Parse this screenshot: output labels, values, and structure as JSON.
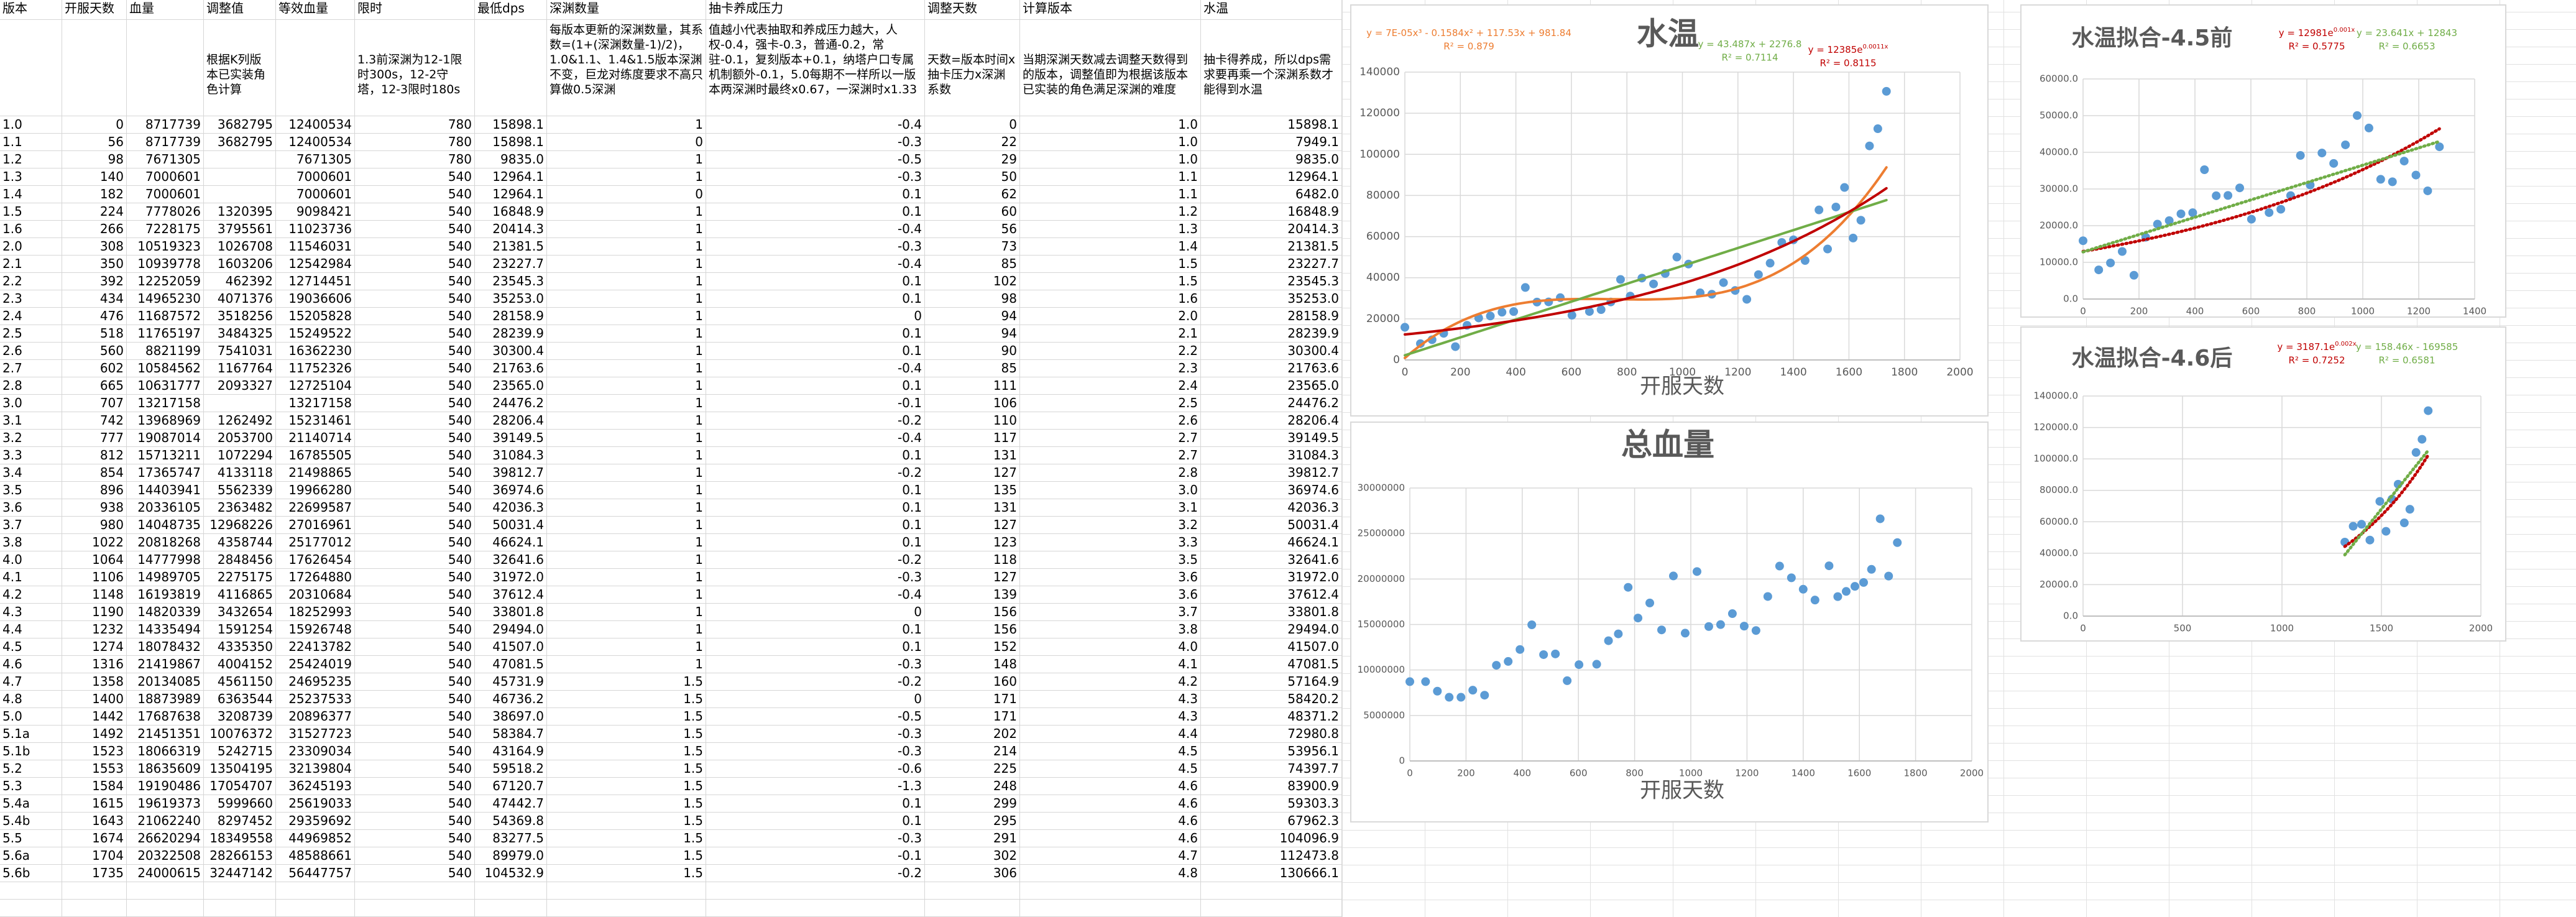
{
  "table": {
    "columns": [
      "版本",
      "开服天数",
      "血量",
      "调整值",
      "等效血量",
      "限时",
      "最低dps",
      "深渊数量",
      "抽卡养成压力",
      "调整天数",
      "计算版本",
      "水温"
    ],
    "notes": [
      null,
      null,
      null,
      "根据K列版本已实装角色计算",
      null,
      "1.3前深渊为12-1限时300s，12-2守塔，12-3限时180s",
      null,
      "每版本更新的深渊数量，其系数=(1+(深渊数量-1)/2)，1.0&1.1、1.4&1.5版本深渊不变，巨龙对练度要求不高只算做0.5深渊",
      "值越小代表抽取和养成压力越大，人权-0.4，强卡-0.3，普通-0.2，常驻-0.1，复刻版本+0.1，纳塔户口专属机制额外-0.1，5.0每期不一样所以一版本两深渊时最终x0.67，一深渊时x1.33",
      "天数=版本时间x抽卡压力x深渊系数",
      "当期深渊天数减去调整天数得到的版本，调整值即为根据该版本已实装的角色满足深渊的难度",
      "抽卡得养成，所以dps需求要再乘一个深渊系数才能得到水温"
    ],
    "rows": [
      [
        "1.0",
        "0",
        "8717739",
        "3682795",
        "12400534",
        "780",
        "15898.1",
        "1",
        "-0.4",
        "0",
        "1.0",
        "15898.1"
      ],
      [
        "1.1",
        "56",
        "8717739",
        "3682795",
        "12400534",
        "780",
        "15898.1",
        "0",
        "-0.3",
        "22",
        "1.0",
        "7949.1"
      ],
      [
        "1.2",
        "98",
        "7671305",
        null,
        "7671305",
        "780",
        "9835.0",
        "1",
        "-0.5",
        "29",
        "1.0",
        "9835.0"
      ],
      [
        "1.3",
        "140",
        "7000601",
        null,
        "7000601",
        "540",
        "12964.1",
        "1",
        "-0.3",
        "50",
        "1.1",
        "12964.1"
      ],
      [
        "1.4",
        "182",
        "7000601",
        null,
        "7000601",
        "540",
        "12964.1",
        "0",
        "0.1",
        "62",
        "1.1",
        "6482.0"
      ],
      [
        "1.5",
        "224",
        "7778026",
        "1320395",
        "9098421",
        "540",
        "16848.9",
        "1",
        "0.1",
        "60",
        "1.2",
        "16848.9"
      ],
      [
        "1.6",
        "266",
        "7228175",
        "3795561",
        "11023736",
        "540",
        "20414.3",
        "1",
        "-0.4",
        "56",
        "1.3",
        "20414.3"
      ],
      [
        "2.0",
        "308",
        "10519323",
        "1026708",
        "11546031",
        "540",
        "21381.5",
        "1",
        "-0.3",
        "73",
        "1.4",
        "21381.5"
      ],
      [
        "2.1",
        "350",
        "10939778",
        "1603206",
        "12542984",
        "540",
        "23227.7",
        "1",
        "-0.4",
        "85",
        "1.5",
        "23227.7"
      ],
      [
        "2.2",
        "392",
        "12252059",
        "462392",
        "12714451",
        "540",
        "23545.3",
        "1",
        "0.1",
        "102",
        "1.5",
        "23545.3"
      ],
      [
        "2.3",
        "434",
        "14965230",
        "4071376",
        "19036606",
        "540",
        "35253.0",
        "1",
        "0.1",
        "98",
        "1.6",
        "35253.0"
      ],
      [
        "2.4",
        "476",
        "11687572",
        "3518256",
        "15205828",
        "540",
        "28158.9",
        "1",
        "0",
        "94",
        "2.0",
        "28158.9"
      ],
      [
        "2.5",
        "518",
        "11765197",
        "3484325",
        "15249522",
        "540",
        "28239.9",
        "1",
        "0.1",
        "94",
        "2.1",
        "28239.9"
      ],
      [
        "2.6",
        "560",
        "8821199",
        "7541031",
        "16362230",
        "540",
        "30300.4",
        "1",
        "0.1",
        "90",
        "2.2",
        "30300.4"
      ],
      [
        "2.7",
        "602",
        "10584562",
        "1167764",
        "11752326",
        "540",
        "21763.6",
        "1",
        "-0.4",
        "85",
        "2.3",
        "21763.6"
      ],
      [
        "2.8",
        "665",
        "10631777",
        "2093327",
        "12725104",
        "540",
        "23565.0",
        "1",
        "0.1",
        "111",
        "2.4",
        "23565.0"
      ],
      [
        "3.0",
        "707",
        "13217158",
        null,
        "13217158",
        "540",
        "24476.2",
        "1",
        "-0.1",
        "106",
        "2.5",
        "24476.2"
      ],
      [
        "3.1",
        "742",
        "13968969",
        "1262492",
        "15231461",
        "540",
        "28206.4",
        "1",
        "-0.2",
        "110",
        "2.6",
        "28206.4"
      ],
      [
        "3.2",
        "777",
        "19087014",
        "2053700",
        "21140714",
        "540",
        "39149.5",
        "1",
        "-0.4",
        "117",
        "2.7",
        "39149.5"
      ],
      [
        "3.3",
        "812",
        "15713211",
        "1072294",
        "16785505",
        "540",
        "31084.3",
        "1",
        "0.1",
        "131",
        "2.7",
        "31084.3"
      ],
      [
        "3.4",
        "854",
        "17365747",
        "4133118",
        "21498865",
        "540",
        "39812.7",
        "1",
        "-0.2",
        "127",
        "2.8",
        "39812.7"
      ],
      [
        "3.5",
        "896",
        "14403941",
        "5562339",
        "19966280",
        "540",
        "36974.6",
        "1",
        "0.1",
        "135",
        "3.0",
        "36974.6"
      ],
      [
        "3.6",
        "938",
        "20336105",
        "2363482",
        "22699587",
        "540",
        "42036.3",
        "1",
        "0.1",
        "131",
        "3.1",
        "42036.3"
      ],
      [
        "3.7",
        "980",
        "14048735",
        "12968226",
        "27016961",
        "540",
        "50031.4",
        "1",
        "0.1",
        "127",
        "3.2",
        "50031.4"
      ],
      [
        "3.8",
        "1022",
        "20818268",
        "4358744",
        "25177012",
        "540",
        "46624.1",
        "1",
        "0.1",
        "123",
        "3.3",
        "46624.1"
      ],
      [
        "4.0",
        "1064",
        "14777998",
        "2848456",
        "17626454",
        "540",
        "32641.6",
        "1",
        "-0.2",
        "118",
        "3.5",
        "32641.6"
      ],
      [
        "4.1",
        "1106",
        "14989705",
        "2275175",
        "17264880",
        "540",
        "31972.0",
        "1",
        "-0.3",
        "127",
        "3.6",
        "31972.0"
      ],
      [
        "4.2",
        "1148",
        "16193819",
        "4116865",
        "20310684",
        "540",
        "37612.4",
        "1",
        "-0.4",
        "139",
        "3.6",
        "37612.4"
      ],
      [
        "4.3",
        "1190",
        "14820339",
        "3432654",
        "18252993",
        "540",
        "33801.8",
        "1",
        "0",
        "156",
        "3.7",
        "33801.8"
      ],
      [
        "4.4",
        "1232",
        "14335494",
        "1591254",
        "15926748",
        "540",
        "29494.0",
        "1",
        "0.1",
        "156",
        "3.8",
        "29494.0"
      ],
      [
        "4.5",
        "1274",
        "18078432",
        "4335350",
        "22413782",
        "540",
        "41507.0",
        "1",
        "0.1",
        "152",
        "4.0",
        "41507.0"
      ],
      [
        "4.6",
        "1316",
        "21419867",
        "4004152",
        "25424019",
        "540",
        "47081.5",
        "1",
        "-0.3",
        "148",
        "4.1",
        "47081.5"
      ],
      [
        "4.7",
        "1358",
        "20134085",
        "4561150",
        "24695235",
        "540",
        "45731.9",
        "1.5",
        "-0.2",
        "160",
        "4.2",
        "57164.9"
      ],
      [
        "4.8",
        "1400",
        "18873989",
        "6363544",
        "25237533",
        "540",
        "46736.2",
        "1.5",
        "0",
        "171",
        "4.3",
        "58420.2"
      ],
      [
        "5.0",
        "1442",
        "17687638",
        "3208739",
        "20896377",
        "540",
        "38697.0",
        "1.5",
        "-0.5",
        "171",
        "4.3",
        "48371.2"
      ],
      [
        "5.1a",
        "1492",
        "21451351",
        "10076372",
        "31527723",
        "540",
        "58384.7",
        "1.5",
        "-0.3",
        "202",
        "4.4",
        "72980.8"
      ],
      [
        "5.1b",
        "1523",
        "18066319",
        "5242715",
        "23309034",
        "540",
        "43164.9",
        "1.5",
        "-0.3",
        "214",
        "4.5",
        "53956.1"
      ],
      [
        "5.2",
        "1553",
        "18635609",
        "13504195",
        "32139804",
        "540",
        "59518.2",
        "1.5",
        "-0.6",
        "225",
        "4.5",
        "74397.7"
      ],
      [
        "5.3",
        "1584",
        "19190486",
        "17054707",
        "36245193",
        "540",
        "67120.7",
        "1.5",
        "-1.3",
        "248",
        "4.6",
        "83900.9"
      ],
      [
        "5.4a",
        "1615",
        "19619373",
        "5999660",
        "25619033",
        "540",
        "47442.7",
        "1.5",
        "0.1",
        "299",
        "4.6",
        "59303.3"
      ],
      [
        "5.4b",
        "1643",
        "21062240",
        "8297452",
        "29359692",
        "540",
        "54369.8",
        "1.5",
        "0.1",
        "295",
        "4.6",
        "67962.3"
      ],
      [
        "5.5",
        "1674",
        "26620294",
        "18349558",
        "44969852",
        "540",
        "83277.5",
        "1.5",
        "-0.3",
        "291",
        "4.6",
        "104096.9"
      ],
      [
        "5.6a",
        "1704",
        "20322508",
        "28266153",
        "48588661",
        "540",
        "89979.0",
        "1.5",
        "-0.1",
        "302",
        "4.7",
        "112473.8"
      ],
      [
        "5.6b",
        "1735",
        "24000615",
        "32447142",
        "56447757",
        "540",
        "104532.9",
        "1.5",
        "-0.2",
        "306",
        "4.8",
        "130666.1"
      ]
    ]
  },
  "chart_data": [
    {
      "type": "scatter",
      "title": "水温",
      "x_label": "开服天数",
      "color": "#5b9bd5",
      "grid": true,
      "x": [
        0,
        56,
        98,
        140,
        182,
        224,
        266,
        308,
        350,
        392,
        434,
        476,
        518,
        560,
        602,
        665,
        707,
        742,
        777,
        812,
        854,
        896,
        938,
        980,
        1022,
        1064,
        1106,
        1148,
        1190,
        1232,
        1274,
        1316,
        1358,
        1400,
        1442,
        1492,
        1523,
        1553,
        1584,
        1615,
        1643,
        1674,
        1704,
        1735
      ],
      "values": [
        15898.1,
        7949.1,
        9835.0,
        12964.1,
        6482.0,
        16848.9,
        20414.3,
        21381.5,
        23227.7,
        23545.3,
        35253.0,
        28158.9,
        28239.9,
        30300.4,
        21763.6,
        23565.0,
        24476.2,
        28206.4,
        39149.5,
        31084.3,
        39812.7,
        36974.6,
        42036.3,
        50031.4,
        46624.1,
        32641.6,
        31972.0,
        37612.4,
        33801.8,
        29494.0,
        41507.0,
        47081.5,
        57164.9,
        58420.2,
        48371.2,
        72980.8,
        53956.1,
        74397.7,
        83900.9,
        59303.3,
        67962.3,
        104096.9,
        112473.8,
        130666.1
      ],
      "xlim": [
        0,
        2000
      ],
      "xticks": [
        0,
        200,
        400,
        600,
        800,
        1000,
        1200,
        1400,
        1600,
        1800,
        2000
      ],
      "ylim": [
        0,
        140000
      ],
      "yticks": [
        0,
        20000,
        40000,
        60000,
        80000,
        100000,
        120000,
        140000
      ],
      "trendlines": [
        {
          "equation": "y = 7E-05x³ - 0.1584x² + 117.53x + 981.84",
          "r2": "R² = 0.879",
          "color": "#ed7d31",
          "style": "solid"
        },
        {
          "equation": "y = 43.487x + 2276.8",
          "r2": "R² = 0.7114",
          "color": "#70ad47",
          "style": "solid"
        },
        {
          "equation": "y = 12385e",
          "exponent": "0.0011x",
          "r2": "R² = 0.8115",
          "color": "#c00000",
          "style": "solid"
        }
      ]
    },
    {
      "type": "scatter",
      "title": "总血量",
      "x_label": "开服天数",
      "color": "#5b9bd5",
      "grid": true,
      "x": [
        0,
        56,
        98,
        140,
        182,
        224,
        266,
        308,
        350,
        392,
        434,
        476,
        518,
        560,
        602,
        665,
        707,
        742,
        777,
        812,
        854,
        896,
        938,
        980,
        1022,
        1064,
        1106,
        1148,
        1190,
        1232,
        1274,
        1316,
        1358,
        1400,
        1442,
        1492,
        1523,
        1553,
        1584,
        1615,
        1643,
        1674,
        1704,
        1735
      ],
      "values": [
        8717739,
        8717739,
        7671305,
        7000601,
        7000601,
        7778026,
        7228175,
        10519323,
        10939778,
        12252059,
        14965230,
        11687572,
        11765197,
        8821199,
        10584562,
        10631777,
        13217158,
        13968969,
        19087014,
        15713211,
        17365747,
        14403941,
        20336105,
        14048735,
        20818268,
        14777998,
        14989705,
        16193819,
        14820339,
        14335494,
        18078432,
        21419867,
        20134085,
        18873989,
        17687638,
        21451351,
        18066319,
        18635609,
        19190486,
        19619373,
        21062240,
        26620294,
        20322508,
        24000615
      ],
      "xlim": [
        0,
        2000
      ],
      "xticks": [
        0,
        200,
        400,
        600,
        800,
        1000,
        1200,
        1400,
        1600,
        1800,
        2000
      ],
      "ylim": [
        0,
        30000000
      ],
      "yticks": [
        0,
        5000000,
        10000000,
        15000000,
        20000000,
        25000000,
        30000000
      ]
    },
    {
      "type": "scatter",
      "title": "水温拟合-4.5前",
      "color": "#5b9bd5",
      "grid": true,
      "x": [
        0,
        56,
        98,
        140,
        182,
        224,
        266,
        308,
        350,
        392,
        434,
        476,
        518,
        560,
        602,
        665,
        707,
        742,
        777,
        812,
        854,
        896,
        938,
        980,
        1022,
        1064,
        1106,
        1148,
        1190,
        1232,
        1274
      ],
      "values": [
        15898.1,
        7949.1,
        9835.0,
        12964.1,
        6482.0,
        16848.9,
        20414.3,
        21381.5,
        23227.7,
        23545.3,
        35253.0,
        28158.9,
        28239.9,
        30300.4,
        21763.6,
        23565.0,
        24476.2,
        28206.4,
        39149.5,
        31084.3,
        39812.7,
        36974.6,
        42036.3,
        50031.4,
        46624.1,
        32641.6,
        31972.0,
        37612.4,
        33801.8,
        29494.0,
        41507.0
      ],
      "xlim": [
        0,
        1400
      ],
      "xticks": [
        0,
        200,
        400,
        600,
        800,
        1000,
        1200,
        1400
      ],
      "ylim": [
        0,
        60000
      ],
      "yticks": [
        {
          "value": 0,
          "label": "0.0"
        },
        {
          "value": 10000,
          "label": "10000.0"
        },
        {
          "value": 20000,
          "label": "20000.0"
        },
        {
          "value": 30000,
          "label": "30000.0"
        },
        {
          "value": 40000,
          "label": "40000.0"
        },
        {
          "value": 50000,
          "label": "50000.0"
        },
        {
          "value": 60000,
          "label": "60000.0"
        }
      ],
      "trendlines": [
        {
          "equation": "y = 12981e",
          "exponent": "0.001x",
          "r2": "R² = 0.5775",
          "color": "#c00000",
          "style": "dotted"
        },
        {
          "equation": "y = 23.641x + 12843",
          "r2": "R² = 0.6653",
          "color": "#70ad47",
          "style": "dotted"
        }
      ]
    },
    {
      "type": "scatter",
      "title": "水温拟合-4.6后",
      "color": "#5b9bd5",
      "grid": true,
      "x": [
        1316,
        1358,
        1400,
        1442,
        1492,
        1523,
        1553,
        1584,
        1615,
        1643,
        1674,
        1704,
        1735
      ],
      "values": [
        47081.5,
        57164.9,
        58420.2,
        48371.2,
        72980.8,
        53956.1,
        74397.7,
        83900.9,
        59303.3,
        67962.3,
        104096.9,
        112473.8,
        130666.1
      ],
      "xlim": [
        0,
        2000
      ],
      "xticks": [
        0,
        500,
        1000,
        1500,
        2000
      ],
      "ylim": [
        0,
        140000
      ],
      "yticks": [
        {
          "value": 0,
          "label": "0.0"
        },
        {
          "value": 20000,
          "label": "20000.0"
        },
        {
          "value": 40000,
          "label": "40000.0"
        },
        {
          "value": 60000,
          "label": "60000.0"
        },
        {
          "value": 80000,
          "label": "80000.0"
        },
        {
          "value": 100000,
          "label": "100000.0"
        },
        {
          "value": 120000,
          "label": "120000.0"
        },
        {
          "value": 140000,
          "label": "140000.0"
        }
      ],
      "trendlines": [
        {
          "equation": "y = 3187.1e",
          "exponent": "0.002x",
          "r2": "R² = 0.7252",
          "color": "#c00000",
          "style": "dotted"
        },
        {
          "equation": "y = 158.46x - 169585",
          "r2": "R² = 0.6581",
          "color": "#70ad47",
          "style": "dotted"
        }
      ]
    }
  ]
}
